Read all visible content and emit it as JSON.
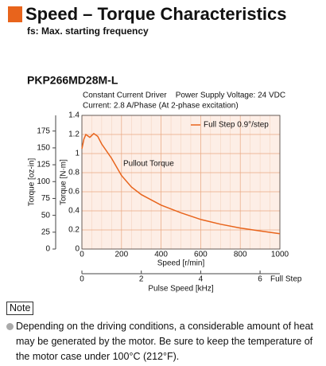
{
  "heading": "Speed – Torque Characteristics",
  "subheading": "fs: Max. starting frequency",
  "model": "PKP266MD28M-L",
  "conditions": [
    "Constant Current Driver    Power Supply Voltage: 24 VDC",
    "Current: 2.8 A/Phase (At 2-phase excitation)"
  ],
  "note": {
    "title": "Note",
    "text": "Depending on the driving conditions, a considerable amount of heat may be generated by the motor. Be sure to keep the temperature of the motor case under 100°C (212°F)."
  },
  "chart_data": {
    "type": "line",
    "xlabel": "Speed [r/min]",
    "ylabel": "Torque [N·m]",
    "y2label": "Torque [oz-in]",
    "x2label": "Pulse Speed [kHz]",
    "x2note": "Full Step",
    "x": [
      0,
      10,
      20,
      40,
      60,
      80,
      100,
      150,
      200,
      250,
      300,
      400,
      500,
      600,
      700,
      800,
      900,
      1000
    ],
    "series": [
      {
        "name": "Full Step 0.9°/step",
        "color": "#e8641c",
        "values": [
          1.05,
          1.15,
          1.2,
          1.17,
          1.21,
          1.18,
          1.1,
          0.95,
          0.77,
          0.65,
          0.57,
          0.46,
          0.38,
          0.31,
          0.26,
          0.22,
          0.19,
          0.16
        ]
      }
    ],
    "annotation": "Pullout Torque",
    "xlim": [
      0,
      1000
    ],
    "xticks": [
      0,
      200,
      400,
      600,
      800,
      1000
    ],
    "ylim": [
      0,
      1.4
    ],
    "yticks": [
      0,
      0.2,
      0.4,
      0.6,
      0.8,
      1.0,
      1.2,
      1.4
    ],
    "y2lim": [
      0,
      198.25
    ],
    "y2ticks": [
      0,
      25,
      50,
      75,
      100,
      125,
      150,
      175
    ],
    "x2lim": [
      0,
      6.667
    ],
    "x2ticks": [
      0,
      2,
      4,
      6
    ],
    "grid": true,
    "legend": "upper right",
    "plot_color": "#fdeee6"
  }
}
